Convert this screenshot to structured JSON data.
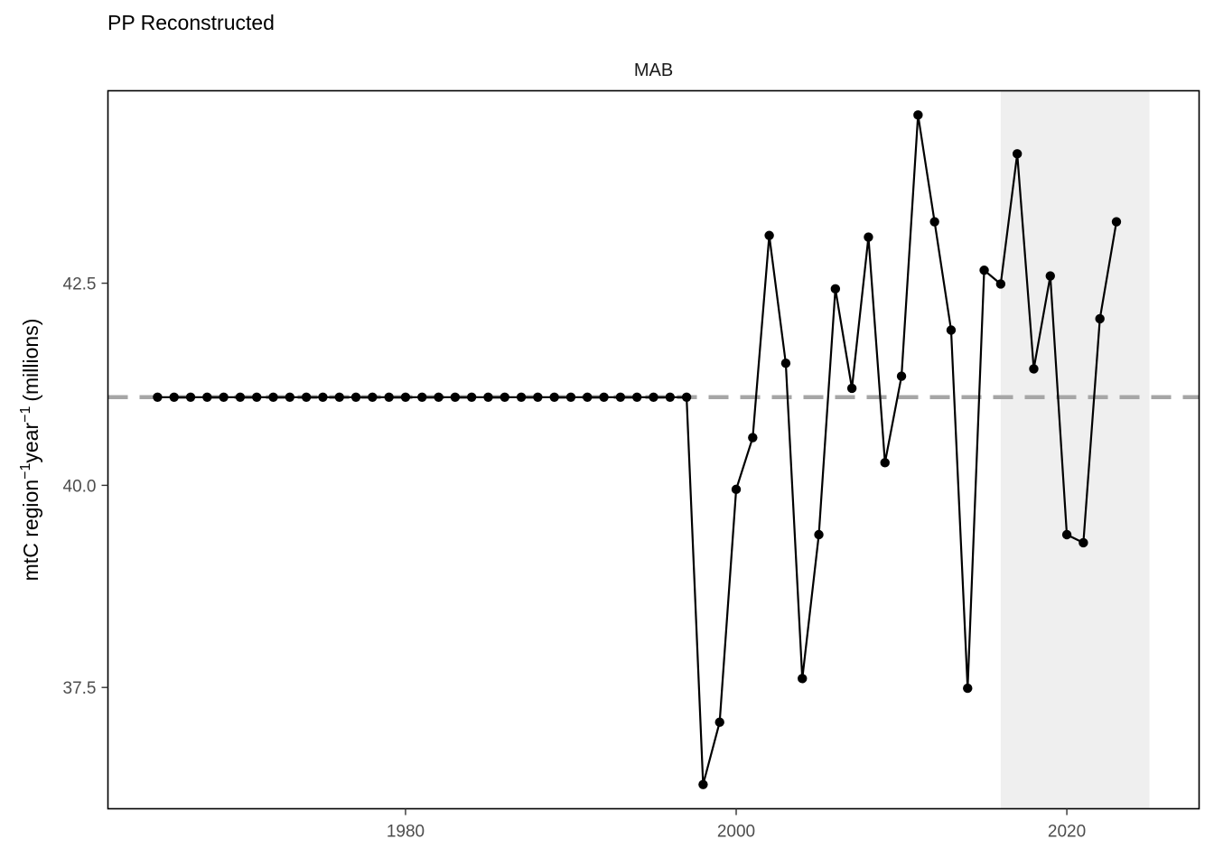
{
  "chart_data": {
    "type": "line",
    "title": "PP Reconstructed",
    "panel_label": "MAB",
    "ylabel_parts": {
      "p1": "mtC region",
      "sup1": "−1",
      "p2": "year",
      "sup2": "−1",
      "p3": "(millions)"
    },
    "xlim": [
      1962,
      2028
    ],
    "ylim": [
      36.0,
      44.88
    ],
    "x_ticks": [
      1980,
      2000,
      2020
    ],
    "y_ticks": [
      37.5,
      40.0,
      42.5
    ],
    "y_tick_labels": [
      "37.5",
      "40.0",
      "42.5"
    ],
    "mean_line": 41.09,
    "highlight_range": [
      2016,
      2025
    ],
    "grid": false,
    "legend": "none",
    "colors": {
      "line": "#000000",
      "points": "#000000",
      "mean_line": "#a6a6a6",
      "highlight": "#efefef",
      "panel_border": "#000000"
    },
    "series": [
      {
        "x": [
          1965,
          1966,
          1967,
          1968,
          1969,
          1970,
          1971,
          1972,
          1973,
          1974,
          1975,
          1976,
          1977,
          1978,
          1979,
          1980,
          1981,
          1982,
          1983,
          1984,
          1985,
          1986,
          1987,
          1988,
          1989,
          1990,
          1991,
          1992,
          1993,
          1994,
          1995,
          1996,
          1997,
          1998,
          1999,
          2000,
          2001,
          2002,
          2003,
          2004,
          2005,
          2006,
          2007,
          2008,
          2009,
          2010,
          2011,
          2012,
          2013,
          2014,
          2015,
          2016,
          2017,
          2018,
          2019,
          2020,
          2021,
          2022,
          2023
        ],
        "y": [
          41.09,
          41.09,
          41.09,
          41.09,
          41.09,
          41.09,
          41.09,
          41.09,
          41.09,
          41.09,
          41.09,
          41.09,
          41.09,
          41.09,
          41.09,
          41.09,
          41.09,
          41.09,
          41.09,
          41.09,
          41.09,
          41.09,
          41.09,
          41.09,
          41.09,
          41.09,
          41.09,
          41.09,
          41.09,
          41.09,
          41.09,
          41.09,
          41.09,
          36.3,
          37.07,
          39.95,
          40.59,
          43.09,
          41.51,
          37.61,
          39.39,
          42.43,
          41.2,
          43.07,
          40.28,
          41.35,
          44.58,
          43.26,
          41.92,
          37.49,
          42.66,
          42.49,
          44.1,
          41.44,
          42.59,
          39.39,
          39.29,
          42.06,
          43.26
        ]
      }
    ]
  }
}
